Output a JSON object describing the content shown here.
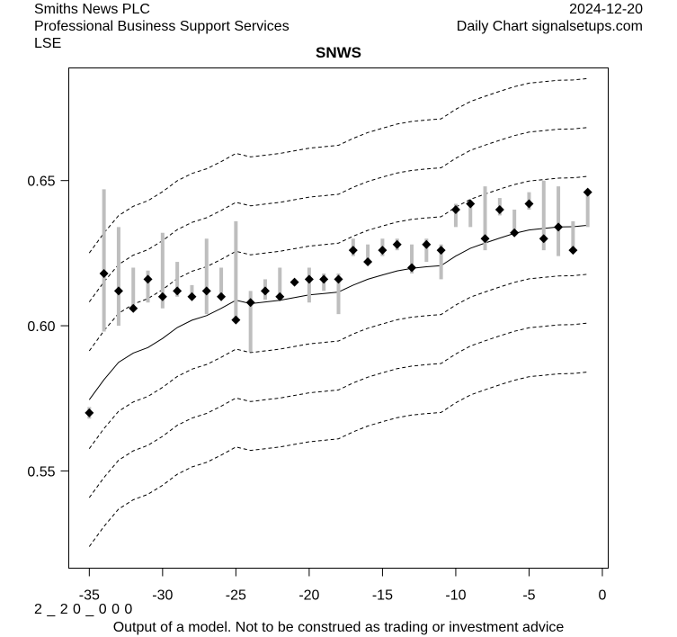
{
  "header": {
    "company": "Smiths News PLC",
    "sector": "Professional Business Support Services",
    "exchange": "LSE",
    "date": "2024-12-20",
    "source": "Daily Chart signalsetups.com"
  },
  "footer": {
    "code": "2 _ 2 0 _ 0 0 0",
    "disclaimer": "Output of a model. Not to be construed as trading or investment advice"
  },
  "chart_data": {
    "type": "line",
    "title": "SNWS",
    "xlabel": "",
    "ylabel": "",
    "xlim": [
      -36.4,
      0.4
    ],
    "ylim": [
      0.5165,
      0.6888
    ],
    "x_ticks": [
      -35,
      -30,
      -25,
      -20,
      -15,
      -10,
      -5,
      0
    ],
    "x_tick_labels": [
      "-35",
      "-30",
      "-25",
      "-20",
      "-15",
      "-10",
      "-5",
      "0"
    ],
    "y_ticks": [
      0.55,
      0.6,
      0.65
    ],
    "y_tick_labels": [
      "0.55",
      "0.60",
      "0.65"
    ],
    "grid": false,
    "colors": {
      "range_bar": "#bebebe",
      "marker": "#000000",
      "center_line": "#000000",
      "bands": "#000000"
    },
    "price_series": {
      "name": "close with daily high-low range",
      "x": [
        -35,
        -34,
        -33,
        -32,
        -31,
        -30,
        -29,
        -28,
        -27,
        -26,
        -25,
        -24,
        -23,
        -22,
        -21,
        -20,
        -19,
        -18,
        -17,
        -16,
        -15,
        -14,
        -13,
        -12,
        -11,
        -10,
        -9,
        -8,
        -7,
        -6,
        -5,
        -4,
        -3,
        -2,
        -1
      ],
      "close": [
        0.57,
        0.618,
        0.612,
        0.606,
        0.616,
        0.61,
        0.612,
        0.61,
        0.612,
        0.61,
        0.602,
        0.608,
        0.612,
        0.61,
        0.615,
        0.616,
        0.616,
        0.616,
        0.626,
        0.622,
        0.626,
        0.628,
        0.62,
        0.628,
        0.626,
        0.64,
        0.642,
        0.63,
        0.64,
        0.632,
        0.642,
        0.63,
        0.634,
        0.626,
        0.646
      ],
      "high": [
        0.572,
        0.647,
        0.634,
        0.62,
        0.619,
        0.632,
        0.622,
        0.614,
        0.63,
        0.62,
        0.636,
        0.612,
        0.616,
        0.62,
        0.616,
        0.62,
        0.618,
        0.618,
        0.63,
        0.628,
        0.63,
        0.63,
        0.628,
        0.63,
        0.628,
        0.642,
        0.643,
        0.648,
        0.644,
        0.64,
        0.646,
        0.65,
        0.648,
        0.636,
        0.646
      ],
      "low": [
        0.568,
        0.598,
        0.6,
        0.606,
        0.608,
        0.606,
        0.61,
        0.61,
        0.604,
        0.61,
        0.602,
        0.591,
        0.609,
        0.61,
        0.614,
        0.608,
        0.612,
        0.604,
        0.624,
        0.622,
        0.624,
        0.626,
        0.618,
        0.622,
        0.616,
        0.634,
        0.634,
        0.626,
        0.638,
        0.632,
        0.64,
        0.626,
        0.624,
        0.626,
        0.634
      ]
    },
    "center_line": {
      "name": "model fit",
      "x": [
        -35,
        -34,
        -33,
        -32,
        -31,
        -30,
        -29,
        -28,
        -27,
        -26,
        -25,
        -24,
        -23,
        -22,
        -21,
        -20,
        -19,
        -18,
        -17,
        -16,
        -15,
        -14,
        -13,
        -12,
        -11,
        -10,
        -9,
        -8,
        -7,
        -6,
        -5,
        -4,
        -3,
        -2,
        -1
      ],
      "y": [
        0.5745,
        0.5814,
        0.5874,
        0.5906,
        0.5925,
        0.5956,
        0.5994,
        0.6019,
        0.6035,
        0.606,
        0.6088,
        0.6076,
        0.6082,
        0.6088,
        0.6097,
        0.6106,
        0.6111,
        0.6116,
        0.614,
        0.616,
        0.6175,
        0.6189,
        0.6198,
        0.6203,
        0.6207,
        0.624,
        0.6267,
        0.6285,
        0.6302,
        0.6318,
        0.633,
        0.6335,
        0.634,
        0.6341,
        0.6346
      ]
    },
    "bands": {
      "style": "dashed",
      "offset_unit": 0.01685,
      "multipliers": [
        -3,
        -2,
        -1,
        1,
        2,
        3
      ]
    }
  }
}
